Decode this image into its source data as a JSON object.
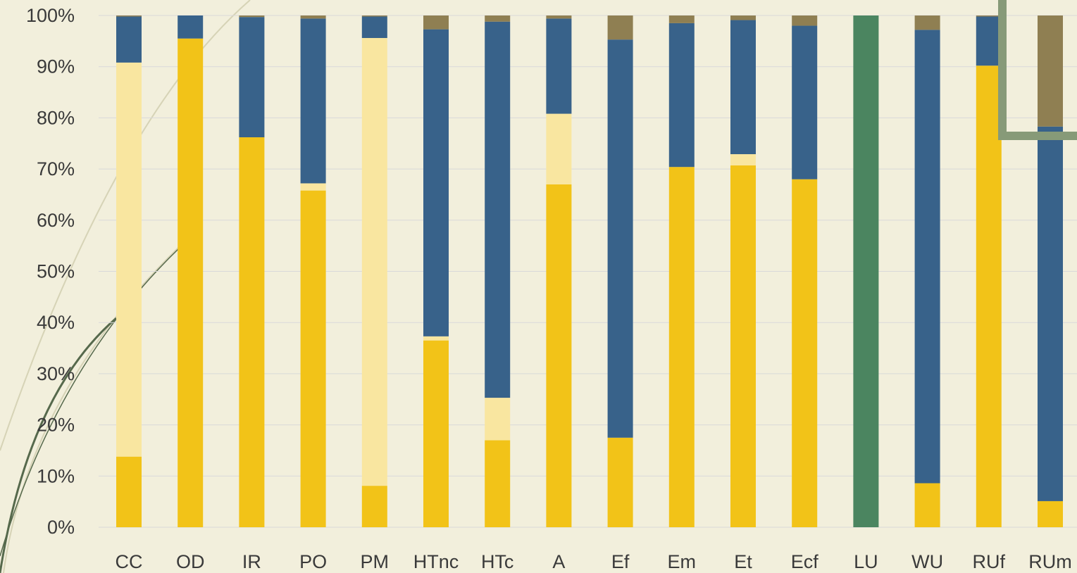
{
  "chart_data": {
    "type": "bar",
    "stacked": true,
    "percent_stacked": true,
    "title": "",
    "xlabel": "",
    "ylabel": "",
    "ylim": [
      0,
      100
    ],
    "y_ticks": [
      "0%",
      "10%",
      "20%",
      "30%",
      "40%",
      "50%",
      "60%",
      "70%",
      "80%",
      "90%",
      "100%"
    ],
    "grid": true,
    "legend": "none",
    "categories": [
      "CC",
      "OD",
      "IR",
      "PO",
      "PM",
      "HTnc",
      "HTc",
      "A",
      "Ef",
      "Em",
      "Et",
      "Ecf",
      "LU",
      "WU",
      "RUf",
      "RUm"
    ],
    "series": [
      {
        "color": "#f2c318",
        "values": [
          13.8,
          95.5,
          76.2,
          65.8,
          8.1,
          36.5,
          17.0,
          67.0,
          17.5,
          70.4,
          70.7,
          68.0,
          0,
          8.6,
          90.2,
          5.1
        ]
      },
      {
        "color": "#f9e6a0",
        "values": [
          77.0,
          0,
          0,
          1.4,
          87.5,
          0.8,
          8.3,
          13.8,
          0,
          0,
          2.2,
          0,
          0,
          0,
          0,
          0
        ]
      },
      {
        "color": "#38628a",
        "values": [
          9.0,
          4.5,
          23.5,
          32.2,
          4.2,
          60.0,
          73.5,
          18.6,
          77.8,
          28.1,
          26.2,
          30.0,
          0,
          88.6,
          9.6,
          73.2
        ]
      },
      {
        "color": "#4b8560",
        "values": [
          0,
          0,
          0,
          0,
          0,
          0,
          0,
          0,
          0,
          0,
          0,
          0,
          100,
          0,
          0,
          0
        ]
      },
      {
        "color": "#8f7f52",
        "values": [
          0.2,
          0,
          0.3,
          0.6,
          0.2,
          2.7,
          1.2,
          0.6,
          4.7,
          1.5,
          0.9,
          2.0,
          0,
          2.8,
          0.2,
          21.7
        ]
      }
    ]
  }
}
